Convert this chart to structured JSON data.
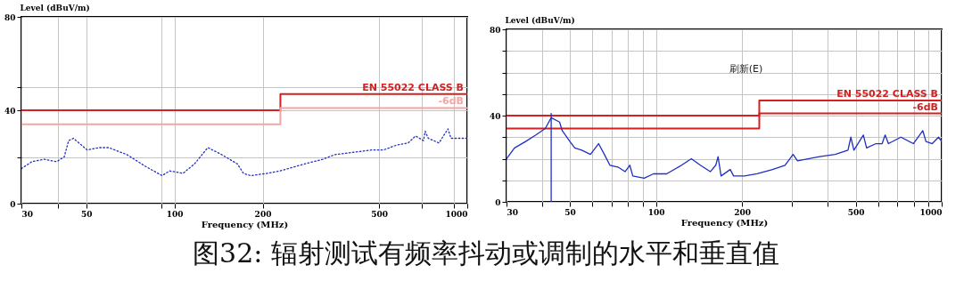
{
  "chart_data": [
    {
      "type": "line",
      "ylabel": "Level (dBuV/m)",
      "xlabel": "Frequency (MHz)",
      "log": "x",
      "grid": true,
      "xlim": [
        30,
        1000
      ],
      "xticks": [
        30,
        {
          "value": 40,
          "label": null
        },
        50,
        {
          "value": 90,
          "label": null
        },
        100,
        200,
        500,
        {
          "value": 700,
          "label": null
        },
        {
          "value": 900,
          "label": null
        },
        1000
      ],
      "ylim": [
        0,
        80
      ],
      "yticks": [
        0,
        {
          "value": 20,
          "label": null
        },
        40,
        {
          "value": 50,
          "label": null
        },
        80
      ],
      "series": [
        {
          "name": "EN 55022 CLASS B",
          "type": "step",
          "color": "#d42020",
          "x": [
            30,
            230,
            1000
          ],
          "values": [
            40,
            47,
            47
          ]
        },
        {
          "name": "-6dB",
          "type": "step",
          "color": "#f4a4a4",
          "x": [
            30,
            230,
            1000
          ],
          "values": [
            34,
            41,
            41
          ]
        },
        {
          "type": "line",
          "color": "#2030c0",
          "line_style": "dotted",
          "x": [
            30,
            32.6,
            35.9,
            39.6,
            42,
            43.5,
            45.2,
            50.3,
            55.5,
            59.6,
            68.8,
            79.5,
            90.7,
            96.3,
            107,
            117,
            130,
            145,
            164,
            172,
            182,
            208,
            229,
            278,
            321,
            353,
            408,
            471,
            518,
            571,
            628,
            666,
            709,
            718,
            736,
            800,
            859,
            880,
            1000
          ],
          "values": [
            15,
            18,
            19,
            18,
            20,
            27,
            28,
            23,
            24,
            24,
            21,
            16,
            12,
            14,
            13,
            17,
            24,
            21,
            17,
            13,
            12,
            13,
            14,
            17,
            19,
            21,
            22,
            23,
            23,
            25,
            26,
            29,
            27,
            31,
            28,
            26,
            32,
            28,
            28
          ]
        }
      ]
    },
    {
      "type": "line",
      "ylabel": "Level (dBuV/m)",
      "xlabel": "Frequency (MHz)",
      "log": "x",
      "grid": true,
      "xlim": [
        30,
        1000
      ],
      "xticks": [
        30,
        {
          "value": 40,
          "label": null
        },
        50,
        {
          "value": 60,
          "label": null
        },
        {
          "value": 70,
          "label": null
        },
        {
          "value": 80,
          "label": null
        },
        {
          "value": 90,
          "label": null
        },
        100,
        200,
        {
          "value": 300,
          "label": null
        },
        {
          "value": 400,
          "label": null
        },
        500,
        {
          "value": 600,
          "label": null
        },
        {
          "value": 700,
          "label": null
        },
        {
          "value": 800,
          "label": null
        },
        {
          "value": 900,
          "label": null
        },
        1000
      ],
      "ylim": [
        0,
        80
      ],
      "yticks": [
        0,
        {
          "value": 10,
          "label": null
        },
        {
          "value": 20,
          "label": null
        },
        {
          "value": 30,
          "label": null
        },
        40,
        {
          "value": 50,
          "label": null
        },
        {
          "value": 60,
          "label": null
        },
        {
          "value": 70,
          "label": null
        },
        80
      ],
      "annotations": [
        "刷新(E)"
      ],
      "series": [
        {
          "name": "EN 55022 CLASS B",
          "type": "step",
          "color": "#d42020",
          "x": [
            30,
            230,
            1000
          ],
          "values": [
            40,
            47,
            47
          ]
        },
        {
          "name": "-6dB",
          "type": "step",
          "color": "#d42020",
          "x": [
            30,
            230,
            1000
          ],
          "values": [
            34,
            41,
            41
          ]
        },
        {
          "type": "line",
          "color": "#2030c0",
          "x": [
            30,
            32,
            35,
            38,
            41,
            43,
            46,
            47,
            50,
            52,
            55,
            59,
            63,
            66,
            69,
            74,
            78,
            81,
            83,
            91,
            98,
            109,
            123,
            133,
            143,
            155,
            162,
            165,
            169,
            182,
            187,
            204,
            226,
            256,
            283,
            302,
            313,
            374,
            424,
            470,
            481,
            493,
            532,
            546,
            589,
            619,
            634,
            651,
            720,
            796,
            859,
            881,
            927,
            975,
            1000
          ],
          "values": [
            20,
            25,
            28,
            31,
            34,
            39,
            37,
            33,
            28,
            25,
            24,
            22,
            27,
            22,
            17,
            16,
            14,
            17,
            12,
            11,
            13,
            13,
            17,
            20,
            17,
            14,
            17,
            21,
            12,
            15,
            12,
            12,
            13,
            15,
            17,
            22,
            19,
            21,
            22,
            24,
            30,
            24,
            31,
            25,
            27,
            27,
            31,
            27,
            30,
            27,
            33,
            28,
            27,
            30,
            28
          ]
        },
        {
          "type": "line",
          "color": "#2030c0",
          "x": [
            43,
            43
          ],
          "values": [
            0,
            41
          ]
        }
      ]
    },
    {
      "type": "other",
      "title": "图32: 辐射测试有频率抖动或调制的水平和垂直值"
    }
  ]
}
